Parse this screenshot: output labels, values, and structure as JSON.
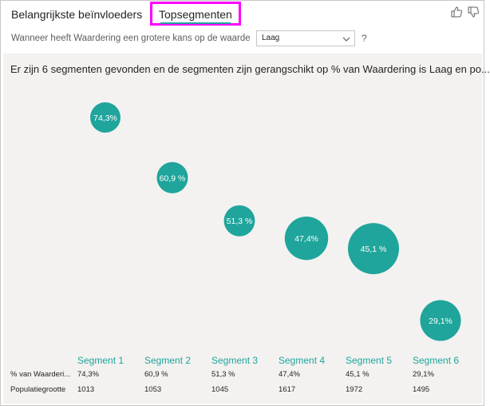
{
  "tabs": {
    "influencers": "Belangrijkste beïnvloeders",
    "segments": "Topsegmenten"
  },
  "feedback": {
    "up_icon": "thumbs-up-icon",
    "down_icon": "thumbs-down-icon"
  },
  "question": {
    "label": "Wanneer heeft Waardering een grotere kans op de waarde",
    "selected_value": "Laag",
    "help": "?"
  },
  "summary": "Er zijn 6 segmenten gevonden en de segmenten zijn gerangschikt op % van Waardering is Laag en po...",
  "colors": {
    "accent": "#1fa59b",
    "highlight": "#ff00ff",
    "panel": "#f3f2f1"
  },
  "chart_data": {
    "type": "scatter",
    "encoding": "bubble size = populatiegrootte, vertical position = % van Waardering",
    "segments": [
      {
        "name": "Segment 1",
        "pct_label": "74,3%",
        "pct": 74.3,
        "population": 1013
      },
      {
        "name": "Segment 2",
        "pct_label": "60,9 %",
        "pct": 60.9,
        "population": 1053
      },
      {
        "name": "Segment 3",
        "pct_label": "51,3 %",
        "pct": 51.3,
        "population": 1045
      },
      {
        "name": "Segment 4",
        "pct_label": "47,4%",
        "pct": 47.4,
        "population": 1617
      },
      {
        "name": "Segment 5",
        "pct_label": "45,1 %",
        "pct": 45.1,
        "population": 1972
      },
      {
        "name": "Segment 6",
        "pct_label": "29,1%",
        "pct": 29.1,
        "population": 1495
      }
    ]
  },
  "table": {
    "row_pct_label": "% van Waarderi...",
    "row_pop_label": "Populatiegrootte",
    "pct_values": [
      "74,3%",
      "60,9 %",
      "51,3 %",
      "47,4%",
      "45,1 %",
      "29,1%"
    ],
    "pop_values": [
      "1013",
      "1053",
      "1045",
      "1617",
      "1972",
      "1495"
    ]
  }
}
